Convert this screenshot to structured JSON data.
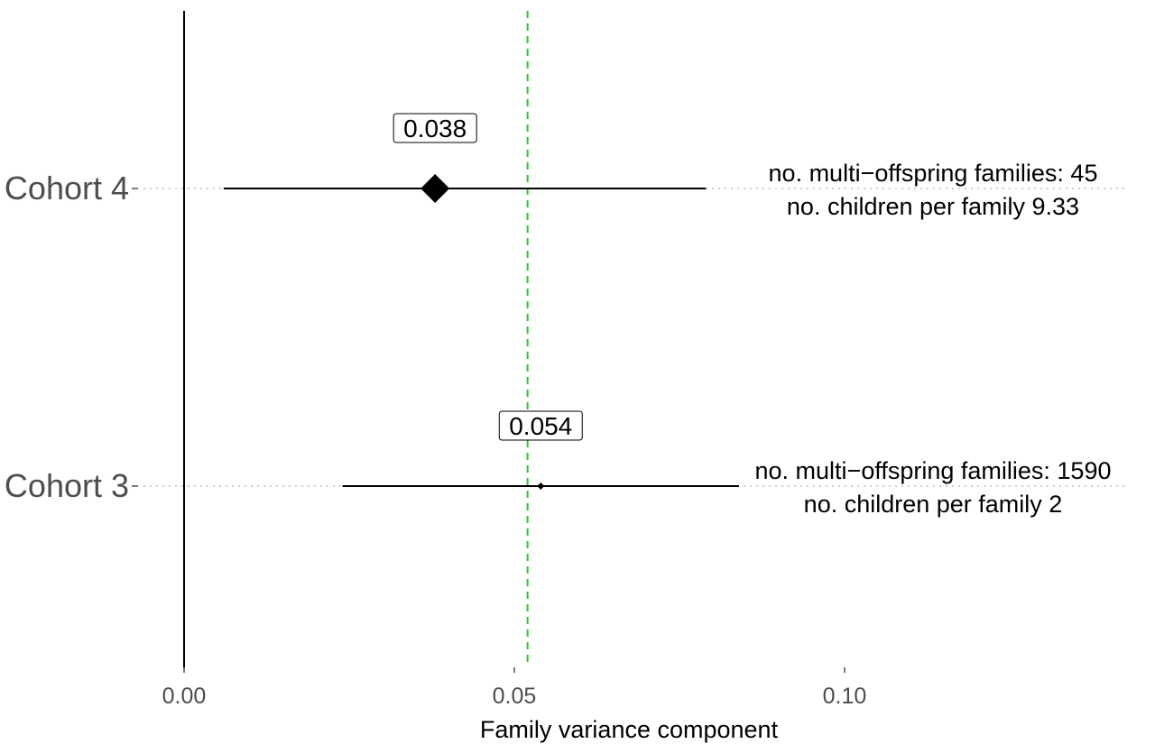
{
  "chart_data": {
    "type": "forest",
    "xlabel": "Family variance component",
    "xlim": [
      0,
      0.147
    ],
    "x_ticks": [
      {
        "value": 0,
        "label": "0.00"
      },
      {
        "value": 0.05,
        "label": "0.05"
      },
      {
        "value": 0.1,
        "label": "0.10"
      }
    ],
    "reference_line": {
      "value": 0.052,
      "color": "#22cc22",
      "style": "dashed"
    },
    "colors": {
      "line": "#000000",
      "grid_dotted": "#bfbfbf"
    },
    "rows": [
      {
        "category": "Cohort 4",
        "estimate": 0.038,
        "estimate_label": "0.038",
        "ci_low": 0.006,
        "ci_high": 0.079,
        "marker_size": "large",
        "note_line1": "no. multi−offspring families: 45",
        "note_line2": "no. children per family 9.33"
      },
      {
        "category": "Cohort 3",
        "estimate": 0.054,
        "estimate_label": "0.054",
        "ci_low": 0.024,
        "ci_high": 0.084,
        "marker_size": "small",
        "note_line1": "no. multi−offspring families: 1590",
        "note_line2": "no. children per family 2"
      }
    ]
  }
}
